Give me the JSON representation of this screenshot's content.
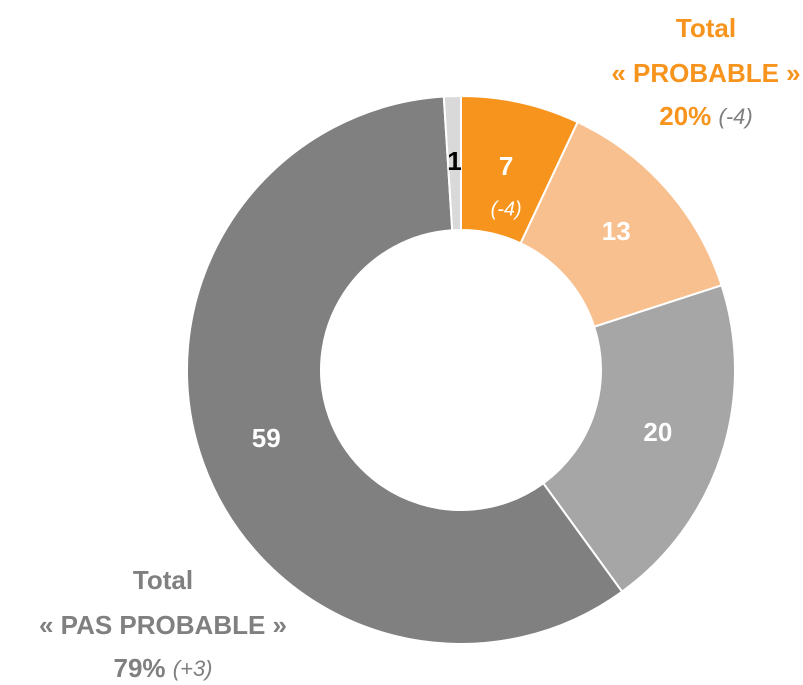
{
  "chart_data": {
    "type": "donut",
    "values": [
      7,
      13,
      20,
      59,
      1
    ],
    "colors": [
      "#f7941d",
      "#f9c08f",
      "#a6a6a6",
      "#808080",
      "#d9d9d9"
    ],
    "label_colors": [
      "#ffffff",
      "#ffffff",
      "#ffffff",
      "#ffffff",
      "#000000"
    ],
    "slice_notes": [
      "(-4)",
      null,
      null,
      null,
      null
    ],
    "annotations": [
      {
        "lines": [
          "Total",
          "« PROBABLE »"
        ],
        "value": "20%",
        "change": "(-4)",
        "color": "#f7941d"
      },
      {
        "lines": [
          "Total",
          "« PAS PROBABLE »"
        ],
        "value": "79%",
        "change": "(+3)",
        "color": "#808080"
      }
    ]
  }
}
